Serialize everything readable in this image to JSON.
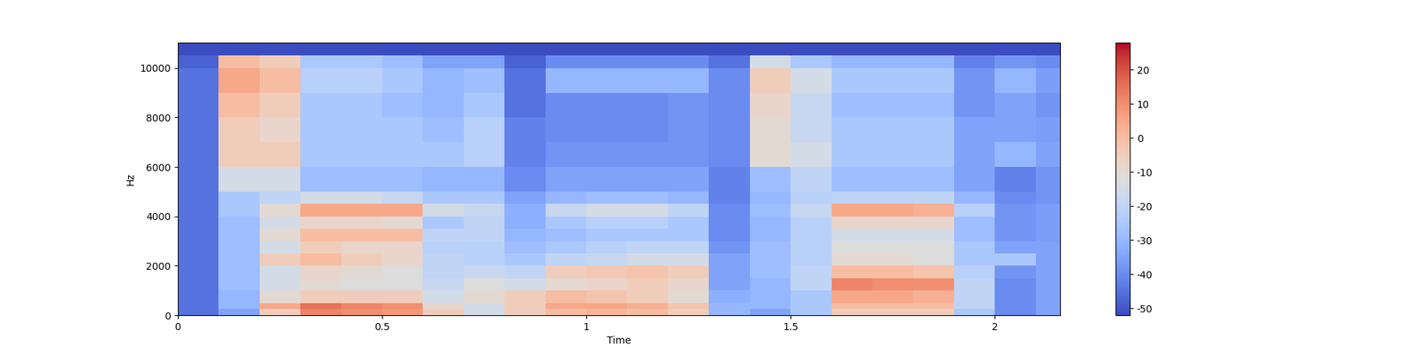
{
  "chart_data": {
    "type": "heatmap",
    "x_label": "Time",
    "y_label": "Hz",
    "color": "coolwarm",
    "xlim": [
      0,
      2.16
    ],
    "xticks": [
      0,
      0.5,
      1,
      1.5,
      2
    ],
    "ylim": [
      0,
      11025
    ],
    "yticks": [
      0,
      2000,
      4000,
      6000,
      8000,
      10000
    ],
    "x_edges": [
      0,
      0.1,
      0.2,
      0.3,
      0.4,
      0.5,
      0.6,
      0.7,
      0.8,
      0.9,
      1.0,
      1.1,
      1.2,
      1.3,
      1.4,
      1.5,
      1.6,
      1.7,
      1.8,
      1.9,
      2.0,
      2.1,
      2.2
    ],
    "y_edges": [
      0,
      250,
      500,
      1000,
      1500,
      2000,
      2500,
      3000,
      3500,
      4000,
      4500,
      5000,
      6000,
      7000,
      8000,
      9000,
      10000,
      10500,
      11025
    ],
    "cells": [
      [
        -45,
        -35,
        -5,
        12,
        10,
        8,
        -5,
        -15,
        -5,
        0,
        2,
        0,
        -5,
        -30,
        -35,
        -25,
        -5,
        -5,
        -5,
        -25,
        -40,
        -35
      ],
      [
        -45,
        -30,
        5,
        15,
        12,
        10,
        -8,
        -15,
        -5,
        5,
        5,
        3,
        -2,
        -30,
        -30,
        -25,
        0,
        0,
        0,
        -20,
        -40,
        -35
      ],
      [
        -45,
        -30,
        -10,
        -5,
        -5,
        -5,
        -15,
        -10,
        -5,
        0,
        -2,
        -5,
        -10,
        -32,
        -30,
        -25,
        5,
        5,
        3,
        -20,
        -40,
        -35
      ],
      [
        -45,
        -28,
        -15,
        -10,
        -12,
        -12,
        -18,
        -12,
        -15,
        -10,
        -8,
        -5,
        -8,
        -35,
        -30,
        -20,
        12,
        10,
        10,
        -20,
        -40,
        -35
      ],
      [
        -45,
        -28,
        -15,
        -8,
        -10,
        -12,
        -20,
        -18,
        -20,
        -5,
        -3,
        -2,
        -5,
        -35,
        -28,
        -20,
        0,
        0,
        -2,
        -22,
        -38,
        -35
      ],
      [
        -45,
        -28,
        -5,
        0,
        -5,
        -8,
        -20,
        -22,
        -25,
        -20,
        -18,
        -15,
        -15,
        -35,
        -28,
        -22,
        -10,
        -10,
        -12,
        -25,
        -25,
        -35
      ],
      [
        -45,
        -28,
        -15,
        -5,
        -8,
        -8,
        -22,
        -22,
        -28,
        -25,
        -22,
        -20,
        -20,
        -38,
        -28,
        -22,
        -12,
        -12,
        -12,
        -25,
        -35,
        -35
      ],
      [
        -45,
        -28,
        -10,
        0,
        0,
        0,
        -20,
        -20,
        -30,
        -28,
        -25,
        -25,
        -25,
        -40,
        -30,
        -22,
        -15,
        -15,
        -15,
        -28,
        -38,
        -36
      ],
      [
        -45,
        -28,
        -15,
        -8,
        -8,
        -10,
        -25,
        -20,
        -32,
        -25,
        -22,
        -22,
        -25,
        -40,
        -30,
        -22,
        -8,
        -8,
        -8,
        -28,
        -38,
        -36
      ],
      [
        -45,
        -25,
        -10,
        5,
        5,
        5,
        -15,
        -18,
        -32,
        -18,
        -15,
        -15,
        -20,
        -40,
        -28,
        -18,
        5,
        5,
        3,
        -22,
        -38,
        -36
      ],
      [
        -45,
        -25,
        -20,
        -15,
        -15,
        -18,
        -25,
        -25,
        -35,
        -30,
        -28,
        -28,
        -30,
        -42,
        -30,
        -22,
        -20,
        -20,
        -20,
        -30,
        -40,
        -38
      ],
      [
        -45,
        -15,
        -15,
        -28,
        -28,
        -28,
        -30,
        -30,
        -40,
        -35,
        -35,
        -35,
        -35,
        -42,
        -28,
        -20,
        -28,
        -28,
        -28,
        -35,
        -42,
        -38
      ],
      [
        -45,
        -5,
        -5,
        -25,
        -25,
        -25,
        -25,
        -22,
        -42,
        -38,
        -38,
        -38,
        -38,
        -40,
        -10,
        -15,
        -25,
        -25,
        -25,
        -35,
        -30,
        -35
      ],
      [
        -45,
        -5,
        -8,
        -25,
        -25,
        -25,
        -28,
        -22,
        -42,
        -40,
        -40,
        -40,
        -38,
        -40,
        -10,
        -18,
        -25,
        -25,
        -25,
        -35,
        -35,
        -36
      ],
      [
        -45,
        0,
        -5,
        -25,
        -25,
        -28,
        -30,
        -25,
        -45,
        -40,
        -40,
        -40,
        -38,
        -40,
        -8,
        -18,
        -28,
        -28,
        -28,
        -38,
        -35,
        -38
      ],
      [
        -45,
        5,
        0,
        -22,
        -22,
        -25,
        -30,
        -28,
        -45,
        -30,
        -30,
        -30,
        -30,
        -40,
        -5,
        -15,
        -25,
        -25,
        -25,
        -38,
        -30,
        -36
      ],
      [
        -48,
        0,
        -5,
        -25,
        -25,
        -28,
        -35,
        -35,
        -48,
        -40,
        -40,
        -40,
        -40,
        -45,
        -15,
        -25,
        -30,
        -30,
        -30,
        -42,
        -38,
        -40
      ],
      [
        -52,
        -52,
        -52,
        -52,
        -52,
        -52,
        -52,
        -52,
        -52,
        -52,
        -52,
        -52,
        -52,
        -52,
        -52,
        -52,
        -52,
        -52,
        -52,
        -52,
        -52,
        -52
      ]
    ],
    "colorbar": {
      "range": [
        -52,
        28
      ],
      "ticks": [
        -50,
        -40,
        -30,
        -20,
        -10,
        0,
        10,
        20
      ]
    }
  }
}
